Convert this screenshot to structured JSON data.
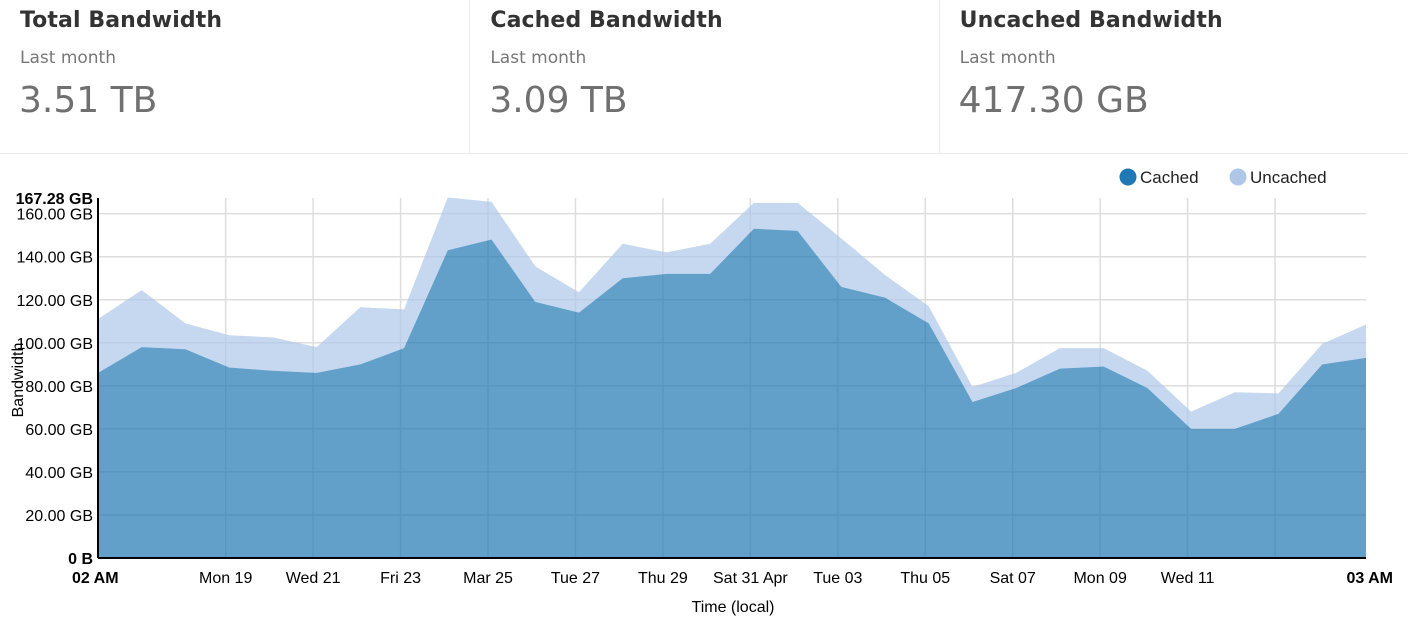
{
  "cards": [
    {
      "title": "Total Bandwidth",
      "subtitle": "Last month",
      "value": "3.51 TB"
    },
    {
      "title": "Cached Bandwidth",
      "subtitle": "Last month",
      "value": "3.09 TB"
    },
    {
      "title": "Uncached Bandwidth",
      "subtitle": "Last month",
      "value": "417.30 GB"
    }
  ],
  "colors": {
    "cached": "#1f77b4",
    "uncached": "#aec7e8",
    "grid": "#dddddd"
  },
  "chart_data": {
    "type": "area",
    "stacked": true,
    "xlabel": "Time (local)",
    "ylabel": "Bandwidth",
    "ylim": [
      0,
      167.28
    ],
    "unit": "GB",
    "y_ticks": [
      "0 B",
      "20.00 GB",
      "40.00 GB",
      "60.00 GB",
      "80.00 GB",
      "100.00 GB",
      "120.00 GB",
      "140.00 GB",
      "160.00 GB"
    ],
    "y_max_label": "167.28 GB",
    "y_tick_values": [
      0,
      20,
      40,
      60,
      80,
      100,
      120,
      140,
      160
    ],
    "x_ticks": [
      {
        "day": 0,
        "label": "02 AM",
        "bold": true
      },
      {
        "day": 2.92,
        "label": "Mon 19"
      },
      {
        "day": 4.92,
        "label": "Wed 21"
      },
      {
        "day": 6.92,
        "label": "Fri 23"
      },
      {
        "day": 8.92,
        "label": "Mar 25"
      },
      {
        "day": 10.92,
        "label": "Tue 27"
      },
      {
        "day": 12.92,
        "label": "Thu 29"
      },
      {
        "day": 14.92,
        "label": "Sat 31 Apr"
      },
      {
        "day": 16.92,
        "label": "Tue 03"
      },
      {
        "day": 18.92,
        "label": "Thu 05"
      },
      {
        "day": 20.92,
        "label": "Sat 07"
      },
      {
        "day": 22.92,
        "label": "Mon 09"
      },
      {
        "day": 24.92,
        "label": "Wed 11"
      },
      {
        "day": 29,
        "label": "03 AM",
        "bold": true
      }
    ],
    "x_grid_days": [
      2.92,
      4.92,
      6.92,
      8.92,
      10.92,
      12.92,
      14.92,
      16.92,
      18.92,
      20.92,
      22.92,
      24.92,
      26.92
    ],
    "x_range_days": [
      0,
      29
    ],
    "x": [
      0,
      1,
      2,
      3,
      4,
      5,
      6,
      7,
      8,
      9,
      10,
      11,
      12,
      13,
      14,
      15,
      16,
      17,
      18,
      19,
      20,
      21,
      22,
      23,
      24,
      25,
      26,
      27,
      28,
      29
    ],
    "series": [
      {
        "name": "Cached",
        "values": [
          86,
          98,
          97,
          88.5,
          87,
          86,
          90,
          97.5,
          143,
          148,
          119,
          114,
          130,
          132,
          132,
          153,
          152,
          126,
          121,
          109,
          72.5,
          79,
          88,
          89,
          79,
          60,
          60,
          67,
          90,
          93
        ]
      },
      {
        "name": "Uncached",
        "values": [
          25,
          26.5,
          12,
          15,
          15.5,
          12,
          26.5,
          18,
          24.5,
          17.5,
          16.5,
          9.5,
          16,
          10,
          14,
          12,
          13,
          22.5,
          10.5,
          8,
          7,
          7,
          9.5,
          8.5,
          8,
          8,
          17,
          9.5,
          9.5,
          15.5
        ]
      }
    ]
  }
}
